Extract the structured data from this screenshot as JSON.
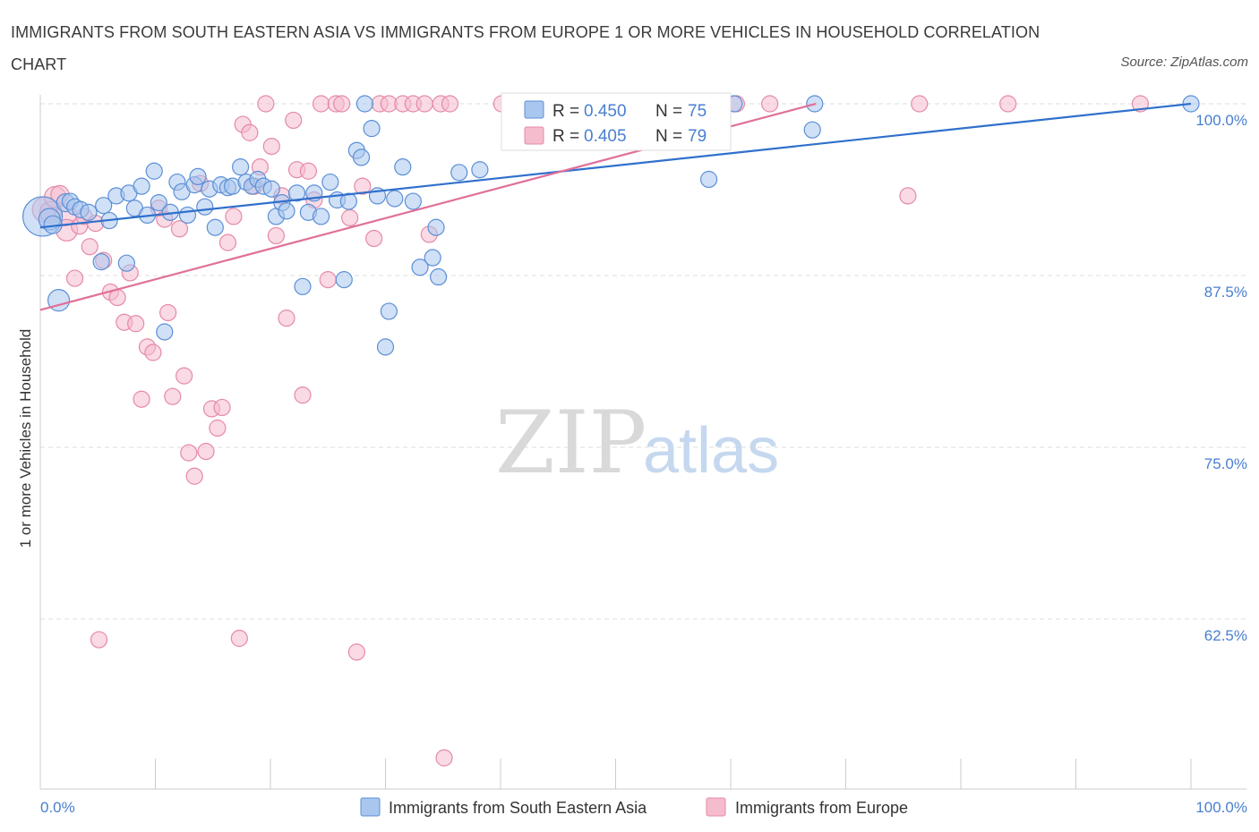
{
  "title": "IMMIGRANTS FROM SOUTH EASTERN ASIA VS IMMIGRANTS FROM EUROPE 1 OR MORE VEHICLES IN HOUSEHOLD CORRELATION CHART",
  "source": "Source: ZipAtlas.com",
  "watermark": {
    "zip": "ZIP",
    "atlas": "atlas"
  },
  "colors": {
    "blue_fill": "#a9c6ee",
    "blue_stroke": "#5b8fd6",
    "blue_line": "#3070cc",
    "pink_fill": "#f5bccd",
    "pink_stroke": "#e58aa6",
    "pink_line": "#e0709a",
    "tick_text": "#4a7fcf",
    "grid": "#dddddd"
  },
  "stats_box": {
    "r_label": "R =",
    "n_label": "N =",
    "rows": [
      {
        "r": "0.450",
        "n": "75"
      },
      {
        "r": "0.405",
        "n": "79"
      }
    ]
  },
  "chart_data": {
    "type": "scatter",
    "title": "IMMIGRANTS FROM SOUTH EASTERN ASIA VS IMMIGRANTS FROM EUROPE 1 OR MORE VEHICLES IN HOUSEHOLD CORRELATION CHART",
    "xlabel": "",
    "ylabel": "1 or more Vehicles in Household",
    "xlim": [
      0,
      100
    ],
    "ylim": [
      50,
      100.5
    ],
    "x_tick_labels": [
      "0.0%",
      "100.0%"
    ],
    "y_ticks": [
      62.5,
      75.0,
      87.5,
      100.0
    ],
    "y_tick_labels": [
      "62.5%",
      "75.0%",
      "87.5%",
      "100.0%"
    ],
    "grid": true,
    "legend_position": "bottom",
    "series": [
      {
        "name": "Immigrants from South Eastern Asia",
        "r": 0.45,
        "n": 75,
        "trend": [
          [
            0,
            91.0
          ],
          [
            100,
            100.0
          ]
        ],
        "points": [
          [
            0.2,
            91.8,
            22
          ],
          [
            0.8,
            91.6,
            12
          ],
          [
            1.1,
            91.2,
            10
          ],
          [
            1.6,
            85.7,
            12
          ],
          [
            2.2,
            92.8,
            10
          ],
          [
            2.6,
            92.9,
            9
          ],
          [
            3.0,
            92.5,
            9
          ],
          [
            3.5,
            92.3,
            9
          ],
          [
            4.2,
            92.1,
            9
          ],
          [
            5.5,
            92.6,
            9
          ],
          [
            6.0,
            91.5,
            9
          ],
          [
            6.6,
            93.3,
            9
          ],
          [
            7.7,
            93.5,
            9
          ],
          [
            8.2,
            92.4,
            9
          ],
          [
            8.8,
            94.0,
            9
          ],
          [
            9.3,
            91.9,
            9
          ],
          [
            9.9,
            95.1,
            9
          ],
          [
            10.3,
            92.8,
            9
          ],
          [
            11.3,
            92.1,
            9
          ],
          [
            11.9,
            94.3,
            9
          ],
          [
            12.3,
            93.6,
            9
          ],
          [
            12.8,
            91.9,
            9
          ],
          [
            13.4,
            94.1,
            9
          ],
          [
            13.7,
            94.7,
            9
          ],
          [
            14.3,
            92.5,
            9
          ],
          [
            14.7,
            93.8,
            9
          ],
          [
            15.2,
            91.0,
            9
          ],
          [
            15.7,
            94.1,
            9
          ],
          [
            16.3,
            93.9,
            9
          ],
          [
            16.7,
            94.0,
            9
          ],
          [
            17.4,
            95.4,
            9
          ],
          [
            17.9,
            94.3,
            9
          ],
          [
            18.4,
            94.0,
            9
          ],
          [
            18.9,
            94.5,
            9
          ],
          [
            19.4,
            94.0,
            9
          ],
          [
            20.1,
            93.8,
            9
          ],
          [
            20.5,
            91.8,
            9
          ],
          [
            21.0,
            92.8,
            9
          ],
          [
            21.4,
            92.2,
            9
          ],
          [
            22.3,
            93.5,
            9
          ],
          [
            22.8,
            86.7,
            9
          ],
          [
            23.3,
            92.1,
            9
          ],
          [
            23.8,
            93.5,
            9
          ],
          [
            24.4,
            91.8,
            9
          ],
          [
            25.2,
            94.3,
            9
          ],
          [
            25.8,
            93.0,
            9
          ],
          [
            26.4,
            87.2,
            9
          ],
          [
            26.8,
            92.9,
            9
          ],
          [
            27.5,
            96.6,
            9
          ],
          [
            27.9,
            96.1,
            9
          ],
          [
            28.2,
            100.0,
            9
          ],
          [
            28.8,
            98.2,
            9
          ],
          [
            29.3,
            93.3,
            9
          ],
          [
            30.0,
            82.3,
            9
          ],
          [
            30.3,
            84.9,
            9
          ],
          [
            30.8,
            93.1,
            9
          ],
          [
            31.5,
            95.4,
            9
          ],
          [
            32.4,
            92.9,
            9
          ],
          [
            33.0,
            88.1,
            9
          ],
          [
            34.1,
            88.8,
            9
          ],
          [
            34.4,
            91.0,
            9
          ],
          [
            34.6,
            87.4,
            9
          ],
          [
            36.4,
            95.0,
            9
          ],
          [
            38.2,
            95.2,
            9
          ],
          [
            42.0,
            100.0,
            9
          ],
          [
            47.2,
            100.0,
            9
          ],
          [
            50.0,
            100.0,
            9
          ],
          [
            58.1,
            94.5,
            9
          ],
          [
            60.3,
            100.0,
            9
          ],
          [
            67.3,
            100.0,
            9
          ],
          [
            67.1,
            98.1,
            9
          ],
          [
            100.0,
            100.0,
            9
          ],
          [
            5.3,
            88.5,
            9
          ],
          [
            7.5,
            88.4,
            9
          ],
          [
            10.8,
            83.4,
            9
          ]
        ]
      },
      {
        "name": "Immigrants from Europe",
        "r": 0.405,
        "n": 79,
        "trend": [
          [
            0,
            85.0
          ],
          [
            67.4,
            100.0
          ]
        ],
        "points": [
          [
            0.4,
            92.3,
            14
          ],
          [
            0.9,
            92.1,
            12
          ],
          [
            1.3,
            93.2,
            12
          ],
          [
            1.7,
            93.4,
            10
          ],
          [
            2.2,
            91.9,
            12
          ],
          [
            2.3,
            90.8,
            12
          ],
          [
            3.0,
            87.3,
            9
          ],
          [
            3.4,
            91.1,
            9
          ],
          [
            3.8,
            91.8,
            9
          ],
          [
            4.3,
            89.6,
            9
          ],
          [
            4.8,
            91.3,
            9
          ],
          [
            5.1,
            61.0,
            9
          ],
          [
            5.5,
            88.6,
            9
          ],
          [
            6.1,
            86.3,
            9
          ],
          [
            6.7,
            85.9,
            9
          ],
          [
            7.3,
            84.1,
            9
          ],
          [
            7.8,
            87.7,
            9
          ],
          [
            8.3,
            84.0,
            9
          ],
          [
            8.8,
            78.5,
            9
          ],
          [
            9.3,
            82.3,
            9
          ],
          [
            9.8,
            81.9,
            9
          ],
          [
            10.3,
            92.4,
            9
          ],
          [
            10.8,
            91.6,
            9
          ],
          [
            11.1,
            84.8,
            9
          ],
          [
            11.5,
            78.7,
            9
          ],
          [
            12.1,
            90.9,
            9
          ],
          [
            12.5,
            80.2,
            9
          ],
          [
            12.9,
            74.6,
            9
          ],
          [
            13.4,
            72.9,
            9
          ],
          [
            13.9,
            94.2,
            9
          ],
          [
            14.4,
            74.7,
            9
          ],
          [
            14.9,
            77.8,
            9
          ],
          [
            15.4,
            76.4,
            9
          ],
          [
            15.8,
            77.9,
            9
          ],
          [
            16.3,
            89.9,
            9
          ],
          [
            16.8,
            91.8,
            9
          ],
          [
            17.3,
            61.1,
            9
          ],
          [
            17.6,
            98.5,
            9
          ],
          [
            18.2,
            97.9,
            9
          ],
          [
            18.6,
            94.0,
            9
          ],
          [
            19.1,
            95.4,
            9
          ],
          [
            19.6,
            100.0,
            9
          ],
          [
            20.1,
            96.9,
            9
          ],
          [
            20.5,
            90.4,
            9
          ],
          [
            21.0,
            93.3,
            9
          ],
          [
            21.4,
            84.4,
            9
          ],
          [
            22.0,
            98.8,
            9
          ],
          [
            22.3,
            95.2,
            9
          ],
          [
            22.8,
            78.8,
            9
          ],
          [
            23.3,
            95.1,
            9
          ],
          [
            23.8,
            93.0,
            9
          ],
          [
            24.4,
            100.0,
            9
          ],
          [
            25.0,
            87.2,
            9
          ],
          [
            25.7,
            100.0,
            9
          ],
          [
            26.2,
            100.0,
            9
          ],
          [
            26.9,
            91.7,
            9
          ],
          [
            27.5,
            60.1,
            9
          ],
          [
            28.0,
            94.0,
            9
          ],
          [
            29.0,
            90.2,
            9
          ],
          [
            29.5,
            100.0,
            9
          ],
          [
            30.3,
            100.0,
            9
          ],
          [
            31.5,
            100.0,
            9
          ],
          [
            32.4,
            100.0,
            9
          ],
          [
            33.4,
            100.0,
            9
          ],
          [
            33.8,
            90.5,
            9
          ],
          [
            34.8,
            100.0,
            9
          ],
          [
            35.1,
            52.4,
            9
          ],
          [
            35.6,
            100.0,
            9
          ],
          [
            40.1,
            100.0,
            9
          ],
          [
            42.8,
            100.0,
            9
          ],
          [
            47.3,
            100.0,
            9
          ],
          [
            52.0,
            100.0,
            9
          ],
          [
            56.4,
            100.0,
            9
          ],
          [
            60.5,
            100.0,
            9
          ],
          [
            63.4,
            100.0,
            9
          ],
          [
            75.4,
            93.3,
            9
          ],
          [
            76.4,
            100.0,
            9
          ],
          [
            84.1,
            100.0,
            9
          ],
          [
            95.6,
            100.0,
            9
          ]
        ]
      }
    ]
  }
}
